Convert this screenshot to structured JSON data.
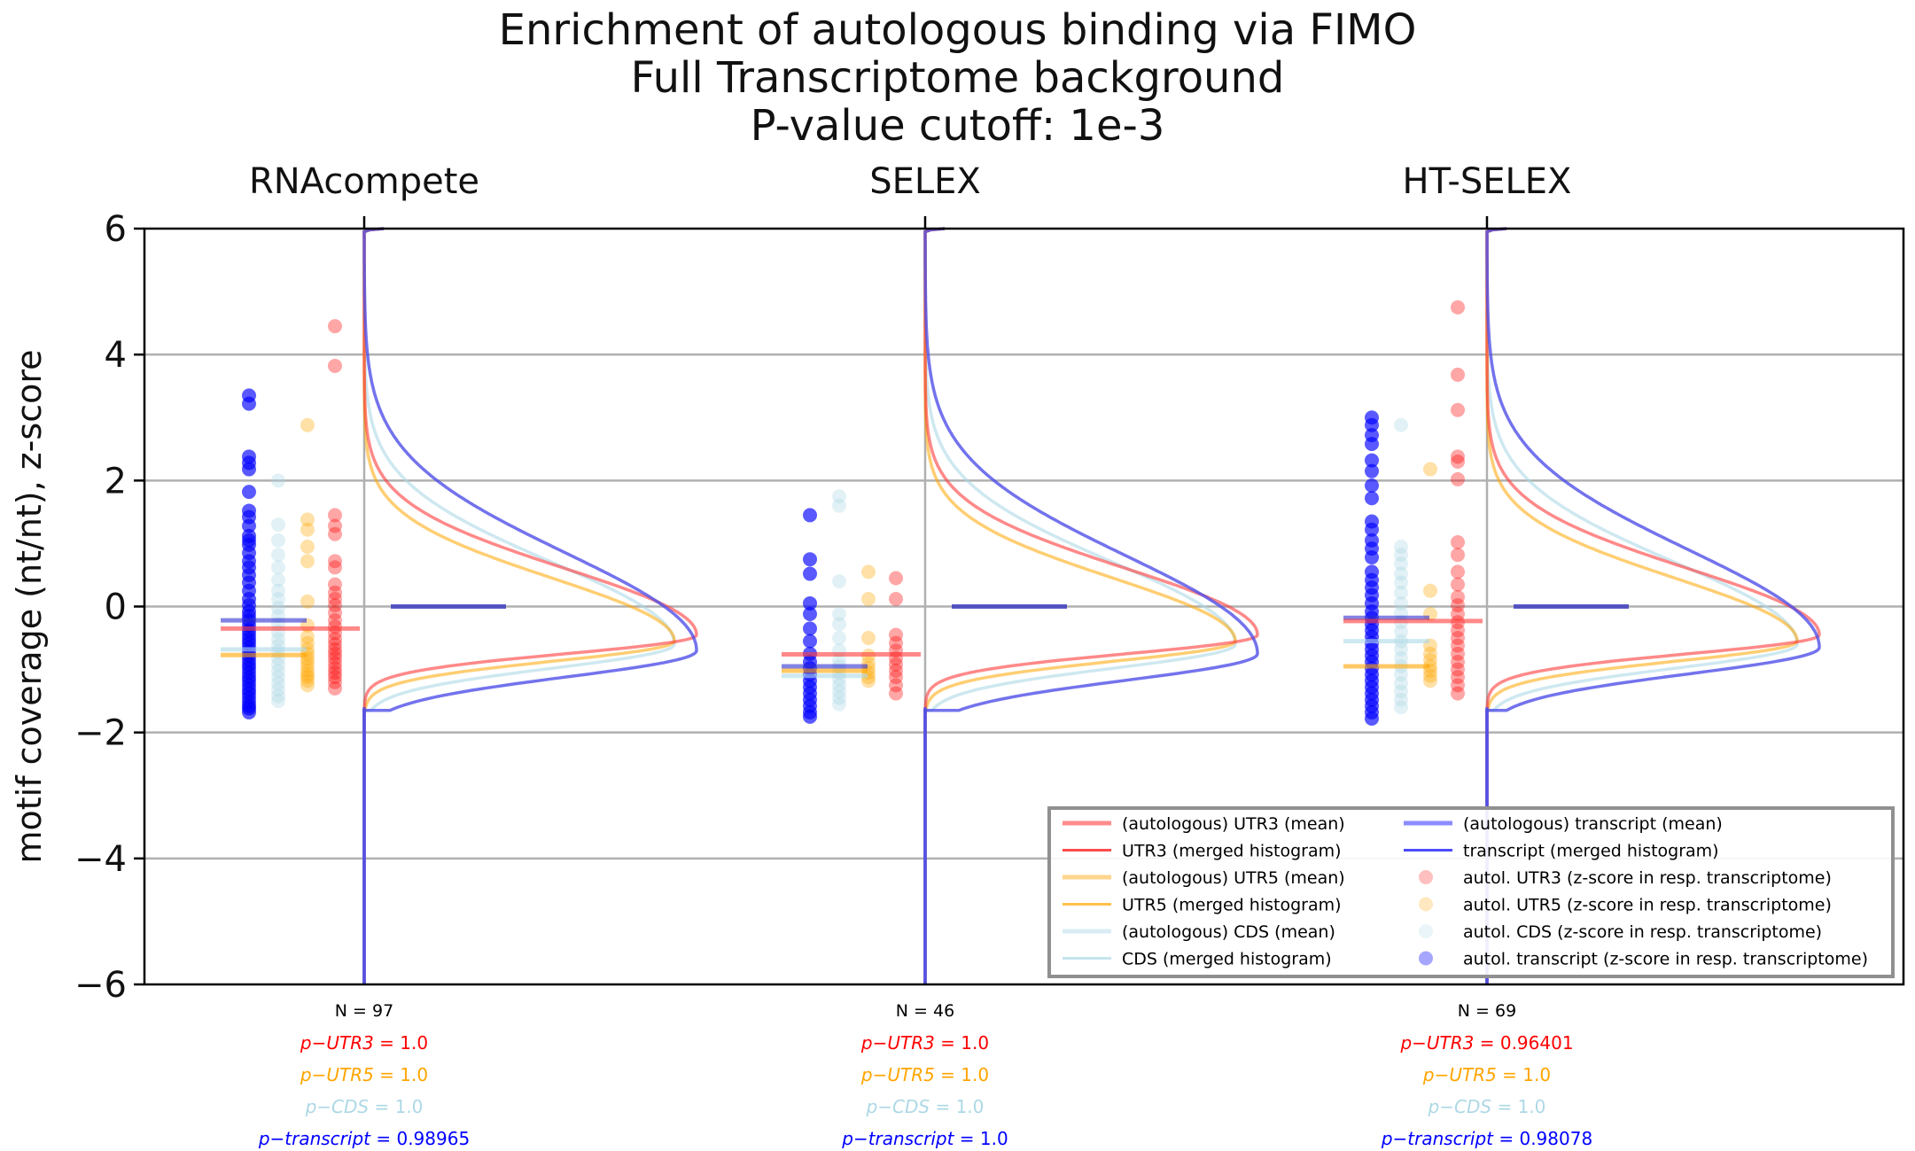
{
  "chart_data": {
    "type": "scatter",
    "title": [
      "Enrichment of autologous binding via FIMO",
      "Full Transcriptome background",
      "P-value cutoff: 1e-3"
    ],
    "ylabel": "motif coverage (nt/nt), z-score",
    "ylim": [
      -6,
      6
    ],
    "yticks": [
      -6,
      -4,
      -2,
      0,
      2,
      4,
      6
    ],
    "ytick_labels": [
      "−6",
      "−4",
      "−2",
      "0",
      "2",
      "4",
      "6"
    ],
    "grid": "horizontal",
    "legend_position": "lower-right",
    "colors": {
      "UTR3": "#ff0000",
      "UTR5": "#ffa500",
      "CDS": "#add8e6",
      "transcript": "#0000ff"
    },
    "legend": [
      {
        "label": "(autologous) UTR3 (mean)",
        "kind": "mean",
        "region": "UTR3"
      },
      {
        "label": "UTR3 (merged histogram)",
        "kind": "hist",
        "region": "UTR3"
      },
      {
        "label": "(autologous) UTR5 (mean)",
        "kind": "mean",
        "region": "UTR5"
      },
      {
        "label": "UTR5 (merged histogram)",
        "kind": "hist",
        "region": "UTR5"
      },
      {
        "label": "(autologous) CDS (mean)",
        "kind": "mean",
        "region": "CDS"
      },
      {
        "label": "CDS (merged histogram)",
        "kind": "hist",
        "region": "CDS"
      },
      {
        "label": "(autologous) transcript (mean)",
        "kind": "mean",
        "region": "transcript"
      },
      {
        "label": "transcript (merged histogram)",
        "kind": "hist",
        "region": "transcript"
      },
      {
        "label": "autol. UTR3 (z-score in resp. transcriptome)",
        "kind": "dot",
        "region": "UTR3"
      },
      {
        "label": "autol. UTR5 (z-score in resp. transcriptome)",
        "kind": "dot",
        "region": "UTR5"
      },
      {
        "label": "autol. CDS (z-score in resp. transcriptome)",
        "kind": "dot",
        "region": "CDS"
      },
      {
        "label": "autol. transcript (z-score in resp. transcriptome)",
        "kind": "dot",
        "region": "transcript"
      }
    ],
    "panels": [
      {
        "name": "RNAcompete",
        "n_label": "N = 97",
        "pvals": [
          {
            "region": "UTR3",
            "label": "p−UTR3",
            "value": "1.0"
          },
          {
            "region": "UTR5",
            "label": "p−UTR5",
            "value": "1.0"
          },
          {
            "region": "CDS",
            "label": "p−CDS",
            "value": "1.0"
          },
          {
            "region": "transcript",
            "label": "p−transcript",
            "value": "0.98965"
          }
        ],
        "means": {
          "transcript": -0.22,
          "CDS": -0.68,
          "UTR5": -0.77,
          "UTR3": -0.35
        },
        "hist_peak": {
          "UTR3": -0.45,
          "UTR5": -0.55,
          "CDS": -0.6,
          "transcript": -0.7
        },
        "points": {
          "transcript": [
            3.35,
            3.22,
            2.38,
            2.28,
            2.18,
            1.82,
            1.52,
            1.42,
            1.28,
            1.12,
            1.05,
            0.98,
            0.85,
            0.72,
            0.62,
            0.5,
            0.38,
            0.25,
            0.12,
            0.02,
            -0.08,
            -0.15,
            -0.22,
            -0.3,
            -0.38,
            -0.45,
            -0.52,
            -0.58,
            -0.65,
            -0.72,
            -0.78,
            -0.85,
            -0.92,
            -0.98,
            -1.05,
            -1.12,
            -1.18,
            -1.25,
            -1.32,
            -1.38,
            -1.45,
            -1.52,
            -1.58,
            -1.62,
            -1.68
          ],
          "CDS": [
            2.0,
            1.3,
            1.05,
            0.82,
            0.62,
            0.42,
            0.25,
            0.12,
            -0.02,
            -0.15,
            -0.28,
            -0.4,
            -0.52,
            -0.62,
            -0.72,
            -0.82,
            -0.92,
            -1.02,
            -1.12,
            -1.22,
            -1.32,
            -1.42,
            -1.5
          ],
          "UTR5": [
            2.88,
            1.38,
            1.22,
            0.95,
            0.72,
            0.08,
            -0.3,
            -0.48,
            -0.58,
            -0.68,
            -0.75,
            -0.82,
            -0.88,
            -0.95,
            -1.02,
            -1.08,
            -1.12,
            -1.18,
            -1.25
          ],
          "UTR3": [
            4.45,
            3.82,
            1.45,
            1.28,
            1.15,
            0.72,
            0.62,
            0.35,
            0.22,
            0.12,
            0.02,
            -0.1,
            -0.22,
            -0.32,
            -0.42,
            -0.52,
            -0.6,
            -0.68,
            -0.75,
            -0.82,
            -0.9,
            -0.98,
            -1.05,
            -1.12,
            -1.2,
            -1.3
          ]
        }
      },
      {
        "name": "SELEX",
        "n_label": "N = 46",
        "pvals": [
          {
            "region": "UTR3",
            "label": "p−UTR3",
            "value": "1.0"
          },
          {
            "region": "UTR5",
            "label": "p−UTR5",
            "value": "1.0"
          },
          {
            "region": "CDS",
            "label": "p−CDS",
            "value": "1.0"
          },
          {
            "region": "transcript",
            "label": "p−transcript",
            "value": "1.0"
          }
        ],
        "means": {
          "transcript": -0.95,
          "CDS": -1.1,
          "UTR5": -1.02,
          "UTR3": -0.76
        },
        "hist_peak": {
          "UTR3": -0.45,
          "UTR5": -0.55,
          "CDS": -0.6,
          "transcript": -0.75
        },
        "points": {
          "transcript": [
            1.45,
            0.75,
            0.52,
            0.05,
            -0.12,
            -0.35,
            -0.55,
            -0.75,
            -0.88,
            -0.98,
            -1.08,
            -1.18,
            -1.28,
            -1.38,
            -1.48,
            -1.58,
            -1.68,
            -1.75
          ],
          "CDS": [
            1.75,
            1.6,
            0.4,
            -0.12,
            -0.28,
            -0.5,
            -0.7,
            -0.85,
            -0.95,
            -1.05,
            -1.15,
            -1.25,
            -1.35,
            -1.45,
            -1.55
          ],
          "UTR5": [
            0.55,
            0.12,
            -0.5,
            -0.78,
            -0.9,
            -0.98,
            -1.05,
            -1.12,
            -1.18
          ],
          "UTR3": [
            0.45,
            0.12,
            -0.45,
            -0.58,
            -0.7,
            -0.82,
            -0.92,
            -1.02,
            -1.12,
            -1.25,
            -1.38
          ]
        }
      },
      {
        "name": "HT-SELEX",
        "n_label": "N = 69",
        "pvals": [
          {
            "region": "UTR3",
            "label": "p−UTR3",
            "value": "0.96401"
          },
          {
            "region": "UTR5",
            "label": "p−UTR5",
            "value": "1.0"
          },
          {
            "region": "CDS",
            "label": "p−CDS",
            "value": "1.0"
          },
          {
            "region": "transcript",
            "label": "p−transcript",
            "value": "0.98078"
          }
        ],
        "means": {
          "transcript": -0.18,
          "CDS": -0.55,
          "UTR5": -0.95,
          "UTR3": -0.23
        },
        "hist_peak": {
          "UTR3": -0.45,
          "UTR5": -0.55,
          "CDS": -0.6,
          "transcript": -0.65
        },
        "points": {
          "transcript": [
            3.0,
            2.88,
            2.72,
            2.58,
            2.32,
            2.15,
            1.92,
            1.72,
            1.35,
            1.22,
            1.05,
            0.92,
            0.78,
            0.55,
            0.42,
            0.3,
            0.18,
            0.05,
            -0.08,
            -0.18,
            -0.28,
            -0.38,
            -0.48,
            -0.58,
            -0.68,
            -0.78,
            -0.88,
            -0.98,
            -1.08,
            -1.18,
            -1.28,
            -1.38,
            -1.48,
            -1.58,
            -1.68,
            -1.78
          ],
          "CDS": [
            2.88,
            0.95,
            0.82,
            0.68,
            0.52,
            0.38,
            0.22,
            0.05,
            -0.1,
            -0.25,
            -0.4,
            -0.55,
            -0.68,
            -0.82,
            -0.95,
            -1.08,
            -1.22,
            -1.35,
            -1.48,
            -1.6
          ],
          "UTR5": [
            2.18,
            0.25,
            -0.12,
            -0.62,
            -0.75,
            -0.85,
            -0.95,
            -1.02,
            -1.1,
            -1.18
          ],
          "UTR3": [
            4.75,
            3.68,
            3.12,
            2.38,
            2.3,
            2.02,
            1.02,
            0.82,
            0.55,
            0.35,
            0.15,
            0.02,
            -0.12,
            -0.25,
            -0.38,
            -0.5,
            -0.62,
            -0.75,
            -0.88,
            -1.0,
            -1.12,
            -1.25,
            -1.38
          ]
        }
      }
    ]
  }
}
